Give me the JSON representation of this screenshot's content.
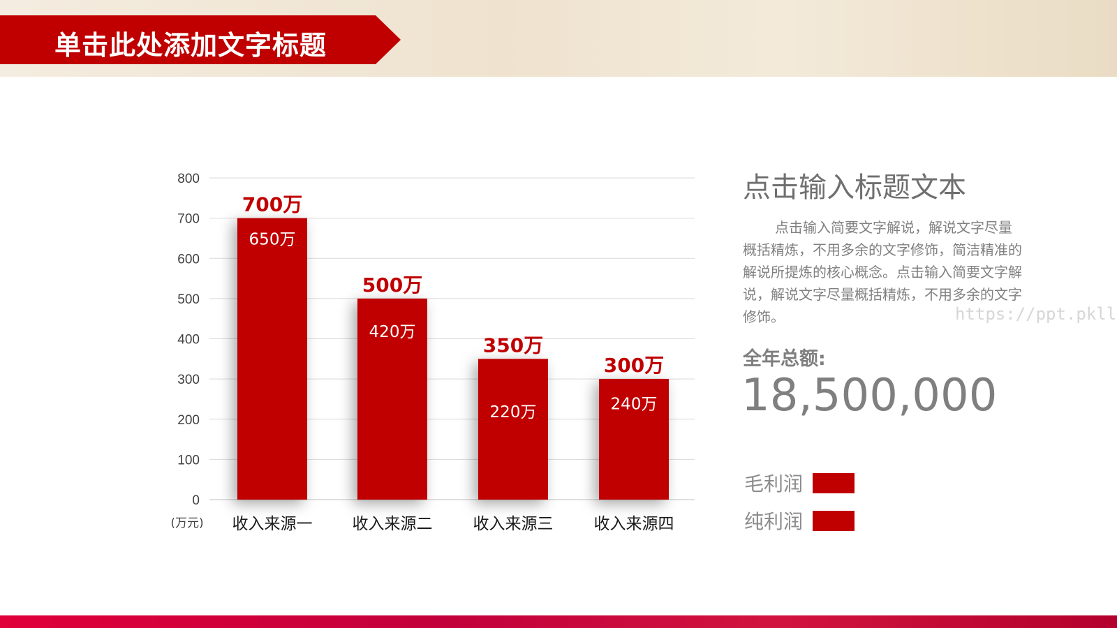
{
  "header": {
    "title": "单击此处添加文字标题"
  },
  "chart_data": {
    "type": "bar",
    "categories": [
      "收入来源一",
      "收入来源二",
      "收入来源三",
      "收入来源四"
    ],
    "series": [
      {
        "values": [
          700,
          500,
          350,
          300
        ],
        "labels": [
          "700万",
          "500万",
          "350万",
          "300万"
        ]
      },
      {
        "values": [
          650,
          420,
          220,
          240
        ],
        "labels": [
          "650万",
          "420万",
          "220万",
          "240万"
        ]
      }
    ],
    "yticks": [
      "0",
      "100",
      "200",
      "300",
      "400",
      "500",
      "600",
      "700",
      "800"
    ],
    "ylim": [
      0,
      800
    ],
    "unit_label": "(万元)",
    "grid": true,
    "bar_color": "#c00000",
    "top_label_color": "#c00000",
    "inner_label_color": "#ffffff"
  },
  "side": {
    "title": "点击输入标题文本",
    "description": "点击输入简要文字解说，解说文字尽量概括精炼，不用多余的文字修饰，简洁精准的 解说所提炼的核心概念。点击输入简要文字解说，解说文字尽量概括精炼，不用多余的文字修饰。",
    "total_label": "全年总额:",
    "total_value": "18,500,000",
    "legend": [
      {
        "label": "毛利润",
        "color": "#c00000"
      },
      {
        "label": "纯利润",
        "color": "#c00000"
      }
    ]
  },
  "watermark": "https://ppt.pkll.de"
}
